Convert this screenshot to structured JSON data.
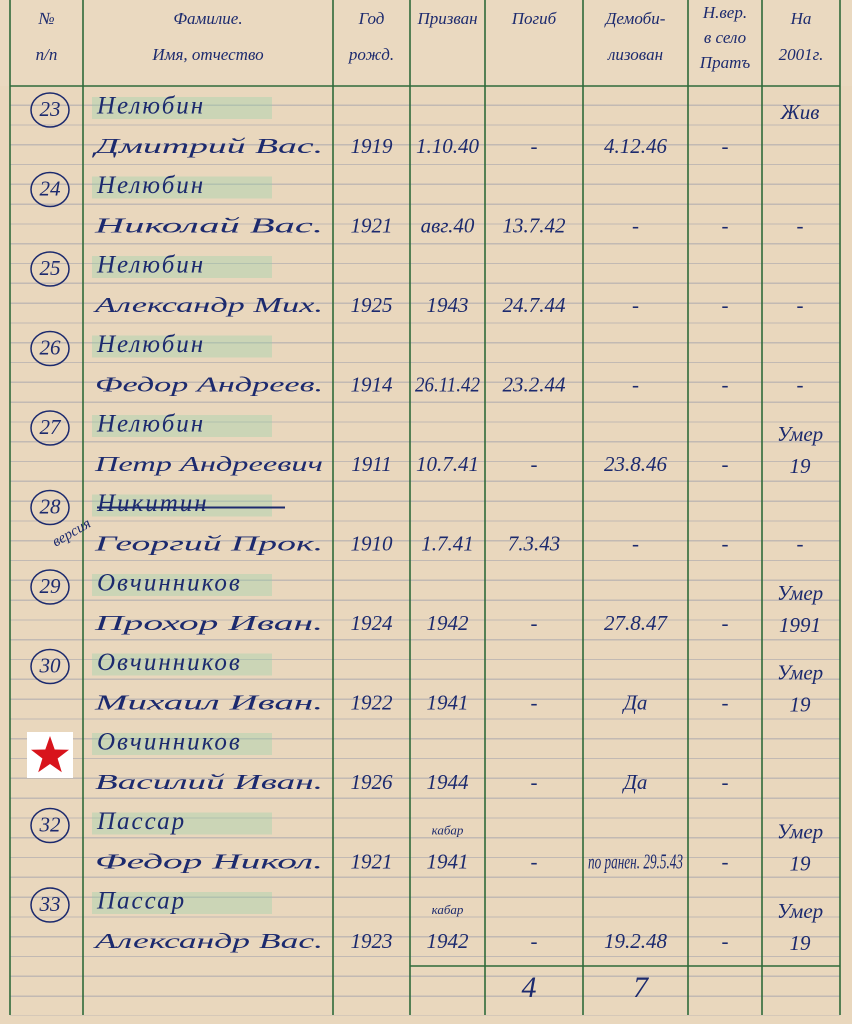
{
  "header": [
    [
      "№",
      "п/п"
    ],
    [
      "Фамилие.",
      "Имя, отчество"
    ],
    [
      "Год",
      "рожд."
    ],
    [
      "Призван"
    ],
    [
      "Погиб"
    ],
    [
      "Демоби-",
      "лизован"
    ],
    [
      "Н.вер.",
      "в село",
      "Пратъ"
    ],
    [
      "На",
      "2001г."
    ]
  ],
  "rows": [
    {
      "number": "23",
      "surname": "Нелюбин",
      "name": "Дмитрий Вас.",
      "birth_year": "1919",
      "called": "1.10.40",
      "killed": "-",
      "demobilized": "4.12.46",
      "returned": "-",
      "in_2001": [
        "Жив"
      ]
    },
    {
      "number": "24",
      "surname": "Нелюбин",
      "name": "Николай Вас.",
      "birth_year": "1921",
      "called": "авг.40",
      "killed": "13.7.42",
      "demobilized": "-",
      "returned": "-",
      "in_2001": [
        "-"
      ]
    },
    {
      "number": "25",
      "surname": "Нелюбин",
      "name": "Александр Мих.",
      "birth_year": "1925",
      "called": "1943",
      "killed": "24.7.44",
      "demobilized": "-",
      "returned": "-",
      "in_2001": [
        "-"
      ]
    },
    {
      "number": "26",
      "surname": "Нелюбин",
      "name": "Федор Андреев.",
      "birth_year": "1914",
      "called": "26.11.42",
      "killed": "23.2.44",
      "demobilized": "-",
      "returned": "-",
      "in_2001": [
        "-"
      ]
    },
    {
      "number": "27",
      "surname": "Нелюбин",
      "name": "Петр Андреевич",
      "birth_year": "1911",
      "called": "10.7.41",
      "killed": "-",
      "demobilized": "23.8.46",
      "returned": "-",
      "in_2001": [
        "Умер",
        "19"
      ]
    },
    {
      "number": "28",
      "note": "версия",
      "surname": "Никитин",
      "struck": true,
      "name": "Георгий Прок.",
      "birth_year": "1910",
      "called": "1.7.41",
      "killed": "7.3.43",
      "demobilized": "-",
      "returned": "-",
      "in_2001": [
        "-"
      ]
    },
    {
      "number": "29",
      "surname": "Овчинников",
      "name": "Прохор Иван.",
      "birth_year": "1924",
      "called": "1942",
      "killed": "-",
      "demobilized": "27.8.47",
      "returned": "-",
      "in_2001": [
        "Умер",
        "1991"
      ]
    },
    {
      "number": "30",
      "surname": "Овчинников",
      "name": "Михаил Иван.",
      "birth_year": "1922",
      "called": "1941",
      "killed": "-",
      "demobilized": "Да",
      "returned": "-",
      "in_2001": [
        "Умер",
        "19"
      ]
    },
    {
      "surname": "Овчинников",
      "name": "Василий Иван.",
      "birth_year": "1926",
      "called": "1944",
      "killed": "-",
      "demobilized": "Да",
      "returned": "-"
    },
    {
      "number": "32",
      "surname": "Пассар",
      "name": "Федор Никол.",
      "birth_year": "1921",
      "called_note": "кабар",
      "called": "1941",
      "killed": "-",
      "demobilized": "по ранен. 29.5.43",
      "returned": "-",
      "in_2001": [
        "Умер",
        "19"
      ]
    },
    {
      "number": "33",
      "surname": "Пассар",
      "name": "Александр Вас.",
      "birth_year": "1923",
      "called_note": "кабар",
      "called": "1942",
      "killed": "-",
      "demobilized": "19.2.48",
      "returned": "-",
      "in_2001": [
        "Умер",
        "19"
      ]
    }
  ],
  "totals": {
    "killed": 4,
    "demobilized": 7
  }
}
